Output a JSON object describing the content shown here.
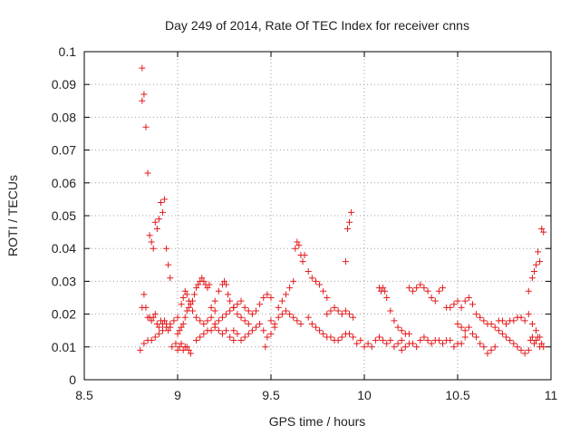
{
  "chart_data": {
    "type": "scatter",
    "title": "Day 249 of 2014, Rate Of TEC Index for receiver cnns",
    "xlabel": "GPS time / hours",
    "ylabel": "ROTI / TECUs",
    "xlim": [
      8.5,
      11
    ],
    "ylim": [
      0,
      0.1
    ],
    "xticks": [
      "8.5",
      "9",
      "9.5",
      "10",
      "10.5",
      "11"
    ],
    "yticks": [
      "0",
      "0.01",
      "0.02",
      "0.03",
      "0.04",
      "0.05",
      "0.06",
      "0.07",
      "0.08",
      "0.09",
      "0.1"
    ],
    "grid": true,
    "marker": "+",
    "marker_color": "#e41a1c",
    "series": [
      {
        "name": "ROTI",
        "points": [
          [
            8.81,
            0.095
          ],
          [
            8.81,
            0.085
          ],
          [
            8.82,
            0.087
          ],
          [
            8.83,
            0.077
          ],
          [
            8.84,
            0.063
          ],
          [
            8.81,
            0.022
          ],
          [
            8.82,
            0.026
          ],
          [
            8.83,
            0.022
          ],
          [
            8.84,
            0.019
          ],
          [
            8.85,
            0.019
          ],
          [
            8.86,
            0.018
          ],
          [
            8.87,
            0.019
          ],
          [
            8.88,
            0.02
          ],
          [
            8.89,
            0.017
          ],
          [
            8.9,
            0.016
          ],
          [
            8.91,
            0.018
          ],
          [
            8.92,
            0.017
          ],
          [
            8.93,
            0.018
          ],
          [
            8.94,
            0.017
          ],
          [
            8.95,
            0.015
          ],
          [
            8.96,
            0.016
          ],
          [
            8.85,
            0.044
          ],
          [
            8.86,
            0.042
          ],
          [
            8.87,
            0.04
          ],
          [
            8.88,
            0.048
          ],
          [
            8.89,
            0.046
          ],
          [
            8.9,
            0.049
          ],
          [
            8.91,
            0.054
          ],
          [
            8.92,
            0.051
          ],
          [
            8.93,
            0.055
          ],
          [
            8.94,
            0.04
          ],
          [
            8.95,
            0.035
          ],
          [
            8.96,
            0.031
          ],
          [
            8.8,
            0.009
          ],
          [
            8.82,
            0.011
          ],
          [
            8.84,
            0.012
          ],
          [
            8.86,
            0.012
          ],
          [
            8.88,
            0.013
          ],
          [
            8.9,
            0.014
          ],
          [
            8.92,
            0.015
          ],
          [
            8.94,
            0.016
          ],
          [
            8.96,
            0.017
          ],
          [
            8.98,
            0.018
          ],
          [
            9.0,
            0.019
          ],
          [
            8.97,
            0.01
          ],
          [
            8.99,
            0.011
          ],
          [
            9.0,
            0.009
          ],
          [
            9.01,
            0.01
          ],
          [
            9.02,
            0.011
          ],
          [
            9.03,
            0.009
          ],
          [
            9.04,
            0.01
          ],
          [
            9.05,
            0.01
          ],
          [
            9.06,
            0.009
          ],
          [
            9.07,
            0.008
          ],
          [
            9.0,
            0.014
          ],
          [
            9.01,
            0.015
          ],
          [
            9.02,
            0.016
          ],
          [
            9.03,
            0.017
          ],
          [
            9.04,
            0.019
          ],
          [
            9.05,
            0.021
          ],
          [
            9.06,
            0.022
          ],
          [
            9.07,
            0.023
          ],
          [
            9.08,
            0.024
          ],
          [
            9.09,
            0.026
          ],
          [
            9.1,
            0.028
          ],
          [
            9.11,
            0.029
          ],
          [
            9.12,
            0.03
          ],
          [
            9.13,
            0.031
          ],
          [
            9.14,
            0.03
          ],
          [
            9.15,
            0.029
          ],
          [
            9.16,
            0.028
          ],
          [
            9.17,
            0.029
          ],
          [
            9.02,
            0.023
          ],
          [
            9.03,
            0.025
          ],
          [
            9.04,
            0.027
          ],
          [
            9.05,
            0.026
          ],
          [
            9.06,
            0.024
          ],
          [
            9.08,
            0.021
          ],
          [
            9.1,
            0.019
          ],
          [
            9.12,
            0.018
          ],
          [
            9.14,
            0.017
          ],
          [
            9.16,
            0.018
          ],
          [
            9.18,
            0.019
          ],
          [
            9.2,
            0.021
          ],
          [
            9.1,
            0.012
          ],
          [
            9.12,
            0.013
          ],
          [
            9.14,
            0.014
          ],
          [
            9.16,
            0.015
          ],
          [
            9.18,
            0.015
          ],
          [
            9.2,
            0.016
          ],
          [
            9.22,
            0.015
          ],
          [
            9.24,
            0.014
          ],
          [
            9.26,
            0.015
          ],
          [
            9.28,
            0.013
          ],
          [
            9.3,
            0.012
          ],
          [
            9.18,
            0.022
          ],
          [
            9.2,
            0.024
          ],
          [
            9.22,
            0.027
          ],
          [
            9.24,
            0.029
          ],
          [
            9.25,
            0.03
          ],
          [
            9.26,
            0.029
          ],
          [
            9.27,
            0.026
          ],
          [
            9.28,
            0.024
          ],
          [
            9.3,
            0.022
          ],
          [
            9.32,
            0.02
          ],
          [
            9.34,
            0.019
          ],
          [
            9.36,
            0.018
          ],
          [
            9.38,
            0.017
          ],
          [
            9.2,
            0.017
          ],
          [
            9.22,
            0.018
          ],
          [
            9.24,
            0.019
          ],
          [
            9.26,
            0.02
          ],
          [
            9.28,
            0.021
          ],
          [
            9.3,
            0.022
          ],
          [
            9.32,
            0.023
          ],
          [
            9.34,
            0.024
          ],
          [
            9.36,
            0.022
          ],
          [
            9.38,
            0.021
          ],
          [
            9.4,
            0.02
          ],
          [
            9.42,
            0.021
          ],
          [
            9.44,
            0.023
          ],
          [
            9.46,
            0.025
          ],
          [
            9.48,
            0.026
          ],
          [
            9.5,
            0.025
          ],
          [
            9.3,
            0.015
          ],
          [
            9.32,
            0.014
          ],
          [
            9.34,
            0.012
          ],
          [
            9.36,
            0.013
          ],
          [
            9.38,
            0.014
          ],
          [
            9.4,
            0.015
          ],
          [
            9.42,
            0.016
          ],
          [
            9.44,
            0.017
          ],
          [
            9.46,
            0.015
          ],
          [
            9.47,
            0.01
          ],
          [
            9.48,
            0.013
          ],
          [
            9.5,
            0.014
          ],
          [
            9.52,
            0.016
          ],
          [
            9.5,
            0.018
          ],
          [
            9.52,
            0.017
          ],
          [
            9.54,
            0.019
          ],
          [
            9.56,
            0.02
          ],
          [
            9.58,
            0.021
          ],
          [
            9.6,
            0.02
          ],
          [
            9.62,
            0.019
          ],
          [
            9.64,
            0.018
          ],
          [
            9.66,
            0.017
          ],
          [
            9.54,
            0.022
          ],
          [
            9.56,
            0.024
          ],
          [
            9.58,
            0.026
          ],
          [
            9.6,
            0.028
          ],
          [
            9.62,
            0.03
          ],
          [
            9.63,
            0.04
          ],
          [
            9.64,
            0.042
          ],
          [
            9.65,
            0.041
          ],
          [
            9.66,
            0.038
          ],
          [
            9.67,
            0.036
          ],
          [
            9.68,
            0.038
          ],
          [
            9.7,
            0.033
          ],
          [
            9.72,
            0.031
          ],
          [
            9.74,
            0.03
          ],
          [
            9.76,
            0.029
          ],
          [
            9.78,
            0.027
          ],
          [
            9.8,
            0.025
          ],
          [
            9.7,
            0.019
          ],
          [
            9.72,
            0.017
          ],
          [
            9.74,
            0.016
          ],
          [
            9.76,
            0.015
          ],
          [
            9.78,
            0.014
          ],
          [
            9.8,
            0.013
          ],
          [
            9.82,
            0.013
          ],
          [
            9.84,
            0.012
          ],
          [
            9.86,
            0.012
          ],
          [
            9.88,
            0.013
          ],
          [
            9.9,
            0.014
          ],
          [
            9.92,
            0.014
          ],
          [
            9.94,
            0.013
          ],
          [
            9.8,
            0.02
          ],
          [
            9.82,
            0.021
          ],
          [
            9.84,
            0.022
          ],
          [
            9.86,
            0.021
          ],
          [
            9.88,
            0.02
          ],
          [
            9.9,
            0.021
          ],
          [
            9.92,
            0.02
          ],
          [
            9.94,
            0.019
          ],
          [
            9.9,
            0.036
          ],
          [
            9.91,
            0.046
          ],
          [
            9.92,
            0.048
          ],
          [
            9.93,
            0.051
          ],
          [
            9.96,
            0.011
          ],
          [
            9.98,
            0.012
          ],
          [
            10.0,
            0.01
          ],
          [
            10.02,
            0.011
          ],
          [
            10.04,
            0.01
          ],
          [
            10.06,
            0.012
          ],
          [
            10.08,
            0.013
          ],
          [
            10.1,
            0.012
          ],
          [
            10.12,
            0.011
          ],
          [
            10.14,
            0.012
          ],
          [
            10.16,
            0.01
          ],
          [
            10.18,
            0.011
          ],
          [
            10.2,
            0.012
          ],
          [
            10.08,
            0.028
          ],
          [
            10.09,
            0.027
          ],
          [
            10.1,
            0.028
          ],
          [
            10.11,
            0.027
          ],
          [
            10.12,
            0.025
          ],
          [
            10.14,
            0.021
          ],
          [
            10.16,
            0.018
          ],
          [
            10.18,
            0.016
          ],
          [
            10.2,
            0.015
          ],
          [
            10.22,
            0.014
          ],
          [
            10.24,
            0.014
          ],
          [
            10.2,
            0.009
          ],
          [
            10.22,
            0.01
          ],
          [
            10.24,
            0.011
          ],
          [
            10.26,
            0.011
          ],
          [
            10.28,
            0.01
          ],
          [
            10.3,
            0.012
          ],
          [
            10.32,
            0.013
          ],
          [
            10.34,
            0.012
          ],
          [
            10.36,
            0.011
          ],
          [
            10.38,
            0.012
          ],
          [
            10.4,
            0.012
          ],
          [
            10.42,
            0.011
          ],
          [
            10.24,
            0.028
          ],
          [
            10.26,
            0.027
          ],
          [
            10.28,
            0.028
          ],
          [
            10.3,
            0.029
          ],
          [
            10.32,
            0.028
          ],
          [
            10.34,
            0.027
          ],
          [
            10.36,
            0.025
          ],
          [
            10.38,
            0.024
          ],
          [
            10.4,
            0.027
          ],
          [
            10.42,
            0.028
          ],
          [
            10.44,
            0.022
          ],
          [
            10.46,
            0.022
          ],
          [
            10.48,
            0.023
          ],
          [
            10.5,
            0.024
          ],
          [
            10.52,
            0.022
          ],
          [
            10.54,
            0.024
          ],
          [
            10.56,
            0.025
          ],
          [
            10.58,
            0.023
          ],
          [
            10.6,
            0.02
          ],
          [
            10.62,
            0.019
          ],
          [
            10.64,
            0.018
          ],
          [
            10.66,
            0.017
          ],
          [
            10.44,
            0.012
          ],
          [
            10.46,
            0.012
          ],
          [
            10.48,
            0.01
          ],
          [
            10.5,
            0.011
          ],
          [
            10.52,
            0.011
          ],
          [
            10.54,
            0.013
          ],
          [
            10.5,
            0.017
          ],
          [
            10.52,
            0.016
          ],
          [
            10.54,
            0.015
          ],
          [
            10.56,
            0.016
          ],
          [
            10.58,
            0.014
          ],
          [
            10.6,
            0.013
          ],
          [
            10.62,
            0.011
          ],
          [
            10.64,
            0.01
          ],
          [
            10.66,
            0.008
          ],
          [
            10.68,
            0.009
          ],
          [
            10.7,
            0.01
          ],
          [
            10.68,
            0.017
          ],
          [
            10.7,
            0.016
          ],
          [
            10.72,
            0.015
          ],
          [
            10.74,
            0.014
          ],
          [
            10.76,
            0.013
          ],
          [
            10.78,
            0.012
          ],
          [
            10.8,
            0.011
          ],
          [
            10.82,
            0.01
          ],
          [
            10.84,
            0.009
          ],
          [
            10.86,
            0.008
          ],
          [
            10.88,
            0.009
          ],
          [
            10.72,
            0.018
          ],
          [
            10.74,
            0.018
          ],
          [
            10.76,
            0.017
          ],
          [
            10.78,
            0.018
          ],
          [
            10.8,
            0.018
          ],
          [
            10.82,
            0.019
          ],
          [
            10.84,
            0.019
          ],
          [
            10.86,
            0.018
          ],
          [
            10.88,
            0.02
          ],
          [
            10.9,
            0.017
          ],
          [
            10.92,
            0.015
          ],
          [
            10.94,
            0.013
          ],
          [
            10.96,
            0.01
          ],
          [
            10.88,
            0.027
          ],
          [
            10.9,
            0.031
          ],
          [
            10.91,
            0.033
          ],
          [
            10.92,
            0.035
          ],
          [
            10.93,
            0.039
          ],
          [
            10.94,
            0.036
          ],
          [
            10.95,
            0.046
          ],
          [
            10.96,
            0.045
          ],
          [
            10.89,
            0.012
          ],
          [
            10.9,
            0.013
          ],
          [
            10.91,
            0.011
          ],
          [
            10.92,
            0.012
          ],
          [
            10.93,
            0.013
          ],
          [
            10.94,
            0.01
          ],
          [
            10.95,
            0.011
          ]
        ]
      }
    ]
  }
}
